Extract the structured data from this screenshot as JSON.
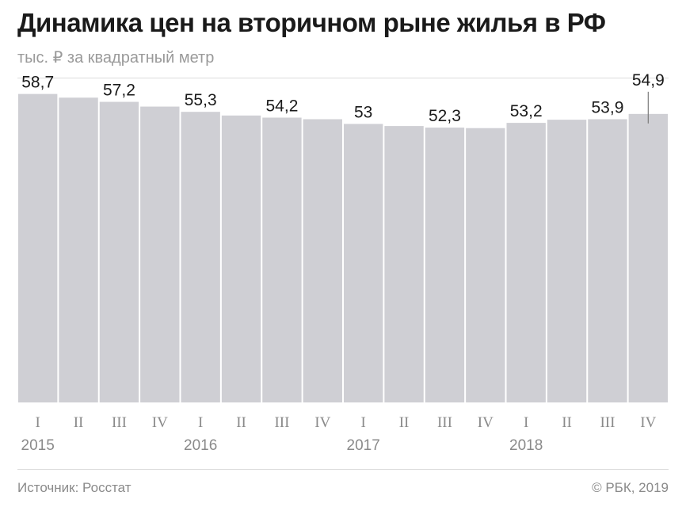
{
  "header": {
    "title": "Динамика цен на вторичном рыне жилья в РФ",
    "subtitle": "тыс. ₽ за квадратный метр"
  },
  "footer": {
    "source": "Источник: Росстат",
    "copyright": "© РБК, 2019"
  },
  "colors": {
    "bar": "#cfcfd4",
    "label": "#1a1a1a",
    "axis_text": "#8a8a8a",
    "marker": "#7a7a7a"
  },
  "chart_data": {
    "type": "bar",
    "title": "Динамика цен на вторичном рыне жилья в РФ",
    "ylabel": "тыс. ₽ за квадратный метр",
    "ylim": [
      0,
      60
    ],
    "grid": false,
    "categories": [
      "I",
      "II",
      "III",
      "IV",
      "I",
      "II",
      "III",
      "IV",
      "I",
      "II",
      "III",
      "IV",
      "I",
      "II",
      "III",
      "IV"
    ],
    "years": [
      "2015",
      "",
      "",
      "",
      "2016",
      "",
      "",
      "",
      "2017",
      "",
      "",
      "",
      "2018",
      "",
      "",
      ""
    ],
    "values": [
      58.7,
      58.0,
      57.2,
      56.3,
      55.3,
      54.6,
      54.2,
      53.9,
      53,
      52.6,
      52.3,
      52.2,
      53.2,
      53.8,
      53.9,
      54.9
    ],
    "data_labels": [
      "58,7",
      "",
      "57,2",
      "",
      "55,3",
      "",
      "54,2",
      "",
      "53",
      "",
      "52,3",
      "",
      "53,2",
      "",
      "53,9",
      "54,9"
    ]
  }
}
